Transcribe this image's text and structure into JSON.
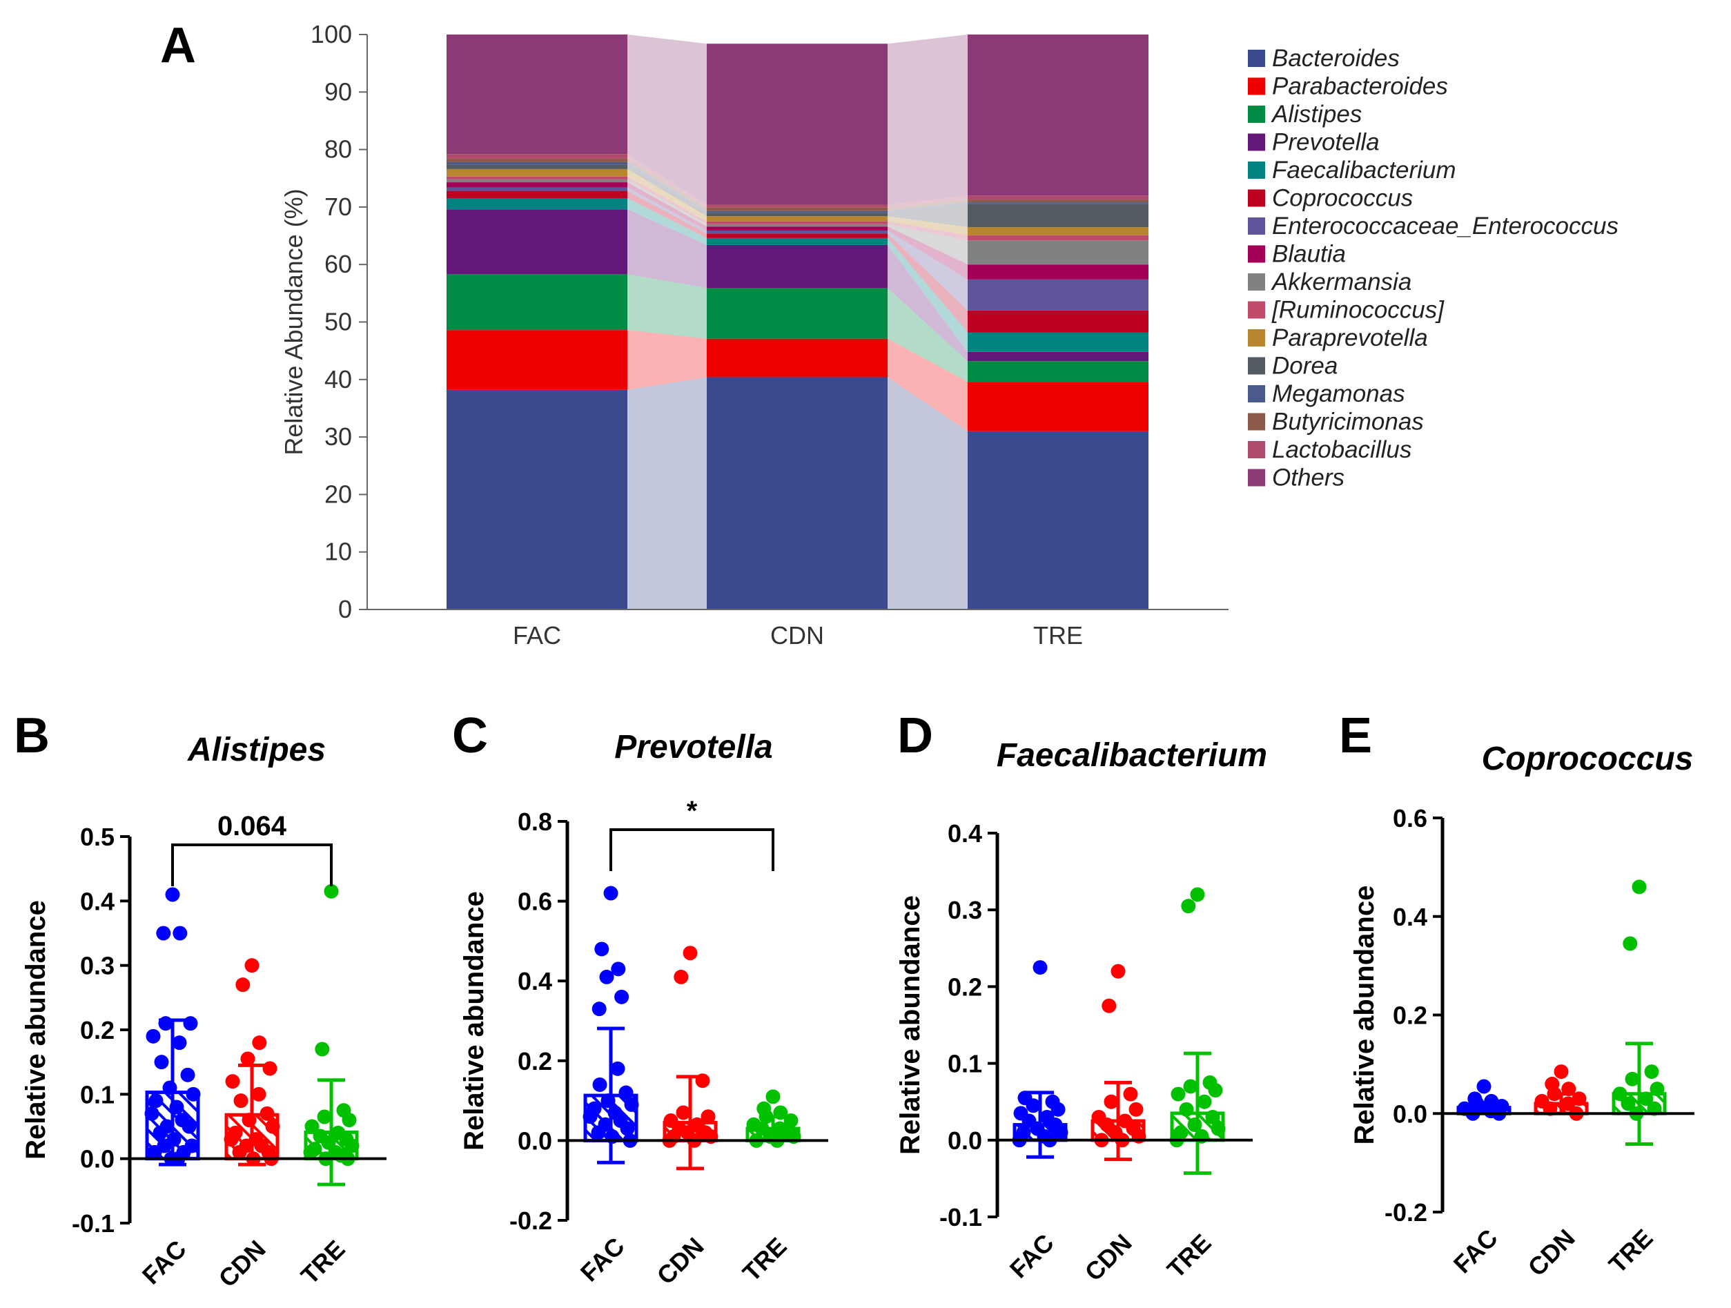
{
  "colors": {
    "FAC": "#0000ff",
    "CDN": "#ff0000",
    "TRE": "#00c000",
    "Bacteroides": "#3b4a8e",
    "Parabacteroides": "#ee0000",
    "Alistipes": "#008b45",
    "Prevotella": "#631879",
    "Faecalibacterium": "#008280",
    "Coprococcus": "#bb0021",
    "Enterococcaceae_Enterococcus": "#5f559b",
    "Blautia": "#a20056",
    "Akkermansia": "#808180",
    "[Ruminococcus]": "#c04a6a",
    "Paraprevotella": "#b8862e",
    "Dorea": "#525a62",
    "Megamonas": "#4a5a8a",
    "Butyricimonas": "#8b5a4a",
    "Lactobacillus": "#b04a6a",
    "Others": "#8b3a76"
  },
  "chart_data": [
    {
      "panel": "A",
      "type": "stacked-bar",
      "categories": [
        "FAC",
        "CDN",
        "TRE"
      ],
      "ylabel": "Relative Abundance (%)",
      "xlabel": "",
      "ylim": [
        0,
        100
      ],
      "yticks": [
        "0",
        "10",
        "20",
        "30",
        "40",
        "50",
        "60",
        "70",
        "80",
        "90",
        "100"
      ],
      "legend_position": "right",
      "series": [
        {
          "name": "Bacteroides",
          "values": [
            38.2,
            40.4,
            31.0
          ]
        },
        {
          "name": "Parabacteroides",
          "values": [
            10.4,
            6.7,
            8.6
          ]
        },
        {
          "name": "Alistipes",
          "values": [
            9.7,
            8.8,
            3.6
          ]
        },
        {
          "name": "Prevotella",
          "values": [
            11.3,
            7.5,
            1.6
          ]
        },
        {
          "name": "Faecalibacterium",
          "values": [
            1.9,
            1.2,
            3.4
          ]
        },
        {
          "name": "Coprococcus",
          "values": [
            1.3,
            0.8,
            3.8
          ]
        },
        {
          "name": "Enterococcaceae_Enterococcus",
          "values": [
            0.6,
            0.5,
            5.4
          ]
        },
        {
          "name": "Blautia",
          "values": [
            0.9,
            0.7,
            2.6
          ]
        },
        {
          "name": "Akkermansia",
          "values": [
            0.5,
            0.4,
            4.2
          ]
        },
        {
          "name": "[Ruminococcus]",
          "values": [
            0.5,
            0.5,
            0.9
          ]
        },
        {
          "name": "Paraprevotella",
          "values": [
            1.3,
            0.9,
            1.4
          ]
        },
        {
          "name": "Dorea",
          "values": [
            0.8,
            0.6,
            4.0
          ]
        },
        {
          "name": "Megamonas",
          "values": [
            0.4,
            0.3,
            0.3
          ]
        },
        {
          "name": "Butyricimonas",
          "values": [
            0.6,
            0.6,
            0.5
          ]
        },
        {
          "name": "Lactobacillus",
          "values": [
            0.8,
            0.5,
            0.7
          ]
        },
        {
          "name": "Others",
          "values": [
            20.8,
            28.0,
            28.0
          ]
        }
      ]
    },
    {
      "panel": "B",
      "type": "bar-scatter",
      "title": "Alistipes",
      "ylabel": "Relative abundance",
      "categories": [
        "FAC",
        "CDN",
        "TRE"
      ],
      "ylim": [
        -0.1,
        0.5
      ],
      "yticks": [
        "-0.1",
        "0.0",
        "0.1",
        "0.2",
        "0.3",
        "0.4",
        "0.5"
      ],
      "means": [
        0.103,
        0.068,
        0.041
      ],
      "sd": [
        0.112,
        0.077,
        0.081
      ],
      "points": [
        [
          0.41,
          0.35,
          0.35,
          0.21,
          0.21,
          0.19,
          0.18,
          0.15,
          0.13,
          0.11,
          0.1,
          0.09,
          0.08,
          0.07,
          0.06,
          0.05,
          0.05,
          0.04,
          0.03,
          0.02,
          0.02,
          0.01,
          0.01,
          0.0,
          0.0
        ],
        [
          0.3,
          0.27,
          0.18,
          0.155,
          0.14,
          0.12,
          0.1,
          0.09,
          0.07,
          0.06,
          0.05,
          0.04,
          0.03,
          0.03,
          0.02,
          0.02,
          0.01,
          0.01,
          0.0,
          0.0
        ],
        [
          0.415,
          0.17,
          0.075,
          0.065,
          0.06,
          0.05,
          0.04,
          0.035,
          0.03,
          0.025,
          0.02,
          0.015,
          0.01,
          0.01,
          0.005,
          0.0,
          0.0
        ]
      ],
      "comparison": {
        "from": "FAC",
        "to": "TRE",
        "label": "0.064"
      }
    },
    {
      "panel": "C",
      "type": "bar-scatter",
      "title": "Prevotella",
      "ylabel": "Relative abundance",
      "categories": [
        "FAC",
        "CDN",
        "TRE"
      ],
      "ylim": [
        -0.2,
        0.8
      ],
      "yticks": [
        "-0.2",
        "0.0",
        "0.2",
        "0.4",
        "0.6",
        "0.8"
      ],
      "means": [
        0.113,
        0.045,
        0.03
      ],
      "sd": [
        0.168,
        0.115,
        0.03
      ],
      "points": [
        [
          0.62,
          0.48,
          0.43,
          0.41,
          0.36,
          0.33,
          0.18,
          0.14,
          0.12,
          0.1,
          0.09,
          0.08,
          0.07,
          0.06,
          0.05,
          0.04,
          0.03,
          0.02,
          0.01,
          0.0
        ],
        [
          0.47,
          0.41,
          0.15,
          0.07,
          0.06,
          0.05,
          0.04,
          0.03,
          0.02,
          0.02,
          0.01,
          0.01,
          0.0,
          0.0
        ],
        [
          0.11,
          0.08,
          0.07,
          0.06,
          0.05,
          0.04,
          0.03,
          0.03,
          0.02,
          0.01,
          0.01,
          0.0,
          0.0
        ]
      ],
      "comparison": {
        "from": "FAC",
        "to": "TRE",
        "label": "*"
      }
    },
    {
      "panel": "D",
      "type": "bar-scatter",
      "title": "Faecalibacterium",
      "ylabel": "Relative abundance",
      "categories": [
        "FAC",
        "CDN",
        "TRE"
      ],
      "ylim": [
        -0.1,
        0.4
      ],
      "yticks": [
        "-0.1",
        "0.0",
        "0.1",
        "0.2",
        "0.3",
        "0.4"
      ],
      "means": [
        0.02,
        0.025,
        0.035
      ],
      "sd": [
        0.042,
        0.05,
        0.078
      ],
      "points": [
        [
          0.225,
          0.055,
          0.05,
          0.045,
          0.04,
          0.035,
          0.03,
          0.025,
          0.02,
          0.015,
          0.01,
          0.01,
          0.005,
          0.0,
          0.0
        ],
        [
          0.22,
          0.175,
          0.06,
          0.05,
          0.04,
          0.03,
          0.025,
          0.02,
          0.015,
          0.01,
          0.005,
          0.0,
          0.0
        ],
        [
          0.32,
          0.305,
          0.075,
          0.07,
          0.065,
          0.06,
          0.05,
          0.04,
          0.03,
          0.02,
          0.015,
          0.01,
          0.005,
          0.0
        ]
      ]
    },
    {
      "panel": "E",
      "type": "bar-scatter",
      "title": "Coprococcus",
      "ylabel": "Relative abundance",
      "categories": [
        "FAC",
        "CDN",
        "TRE"
      ],
      "ylim": [
        -0.2,
        0.6
      ],
      "yticks": [
        "-0.2",
        "0.0",
        "0.2",
        "0.4",
        "0.6"
      ],
      "means": [
        0.012,
        0.02,
        0.04
      ],
      "sd": [
        0.01,
        0.02,
        0.102
      ],
      "points": [
        [
          0.055,
          0.03,
          0.025,
          0.02,
          0.015,
          0.01,
          0.005,
          0.0,
          0.0
        ],
        [
          0.085,
          0.06,
          0.05,
          0.04,
          0.03,
          0.025,
          0.02,
          0.01,
          0.0
        ],
        [
          0.46,
          0.345,
          0.085,
          0.07,
          0.05,
          0.04,
          0.03,
          0.02,
          0.01,
          0.0
        ]
      ]
    }
  ]
}
